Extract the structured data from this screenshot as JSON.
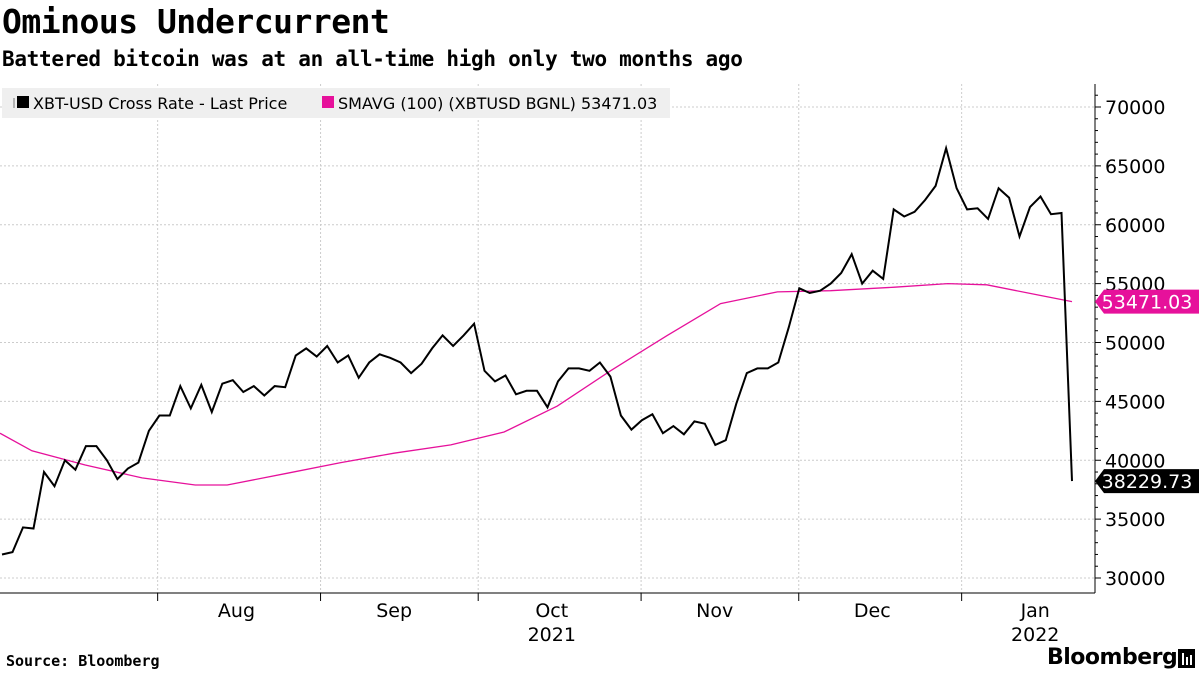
{
  "header": {
    "title": "Ominous Undercurrent",
    "subtitle": "Battered bitcoin was at an all-time high only two months ago"
  },
  "footer": {
    "source": "Source:  Bloomberg",
    "brand": "Bloomberg"
  },
  "colors": {
    "price_line": "#000000",
    "sma_line": "#e6119b",
    "grid": "#cccccc",
    "legend_bg": "#efefef"
  },
  "chart_data": {
    "type": "line",
    "x_unit": "date",
    "x_range": [
      "2021-07-02",
      "2022-01-22"
    ],
    "ylim": [
      28000,
      72000
    ],
    "y_ticks": [
      30000,
      35000,
      40000,
      45000,
      50000,
      55000,
      60000,
      65000,
      70000
    ],
    "y_tick_labels": [
      "30000",
      "35000",
      "40000",
      "45000",
      "50000",
      "55000",
      "60000",
      "65000",
      "70000"
    ],
    "x_month_ticks": [
      {
        "label": "Aug",
        "date": "2021-08-16"
      },
      {
        "label": "Sep",
        "date": "2021-09-15"
      },
      {
        "label": "Oct",
        "date": "2021-10-15"
      },
      {
        "label": "Nov",
        "date": "2021-11-15"
      },
      {
        "label": "Dec",
        "date": "2021-12-15"
      },
      {
        "label": "Jan",
        "date": "2022-01-15"
      }
    ],
    "x_year_labels": [
      {
        "label": "2021",
        "date": "2021-10-15"
      },
      {
        "label": "2022",
        "date": "2022-01-15"
      }
    ],
    "grid": true,
    "legend_position": "top-left",
    "series": [
      {
        "name": "XBT-USD Cross Rate - Last Price",
        "last_label": "38229.73",
        "points": [
          [
            "2021-07-03",
            32000
          ],
          [
            "2021-07-05",
            32200
          ],
          [
            "2021-07-07",
            34300
          ],
          [
            "2021-07-09",
            34200
          ],
          [
            "2021-07-11",
            39000
          ],
          [
            "2021-07-13",
            37800
          ],
          [
            "2021-07-15",
            40000
          ],
          [
            "2021-07-17",
            39200
          ],
          [
            "2021-07-19",
            41200
          ],
          [
            "2021-07-21",
            41200
          ],
          [
            "2021-07-23",
            40000
          ],
          [
            "2021-07-25",
            38400
          ],
          [
            "2021-07-27",
            39300
          ],
          [
            "2021-07-29",
            39800
          ],
          [
            "2021-07-31",
            42500
          ],
          [
            "2021-08-02",
            43800
          ],
          [
            "2021-08-04",
            43800
          ],
          [
            "2021-08-06",
            46300
          ],
          [
            "2021-08-08",
            44400
          ],
          [
            "2021-08-10",
            46400
          ],
          [
            "2021-08-12",
            44100
          ],
          [
            "2021-08-14",
            46500
          ],
          [
            "2021-08-16",
            46800
          ],
          [
            "2021-08-18",
            45800
          ],
          [
            "2021-08-20",
            46300
          ],
          [
            "2021-08-22",
            45500
          ],
          [
            "2021-08-24",
            46300
          ],
          [
            "2021-08-26",
            46200
          ],
          [
            "2021-08-28",
            48900
          ],
          [
            "2021-08-30",
            49500
          ],
          [
            "2021-09-01",
            48800
          ],
          [
            "2021-09-03",
            49700
          ],
          [
            "2021-09-05",
            48300
          ],
          [
            "2021-09-07",
            48900
          ],
          [
            "2021-09-09",
            47000
          ],
          [
            "2021-09-11",
            48300
          ],
          [
            "2021-09-13",
            49000
          ],
          [
            "2021-09-15",
            48700
          ],
          [
            "2021-09-17",
            48300
          ],
          [
            "2021-09-19",
            47400
          ],
          [
            "2021-09-21",
            48200
          ],
          [
            "2021-09-23",
            49500
          ],
          [
            "2021-09-25",
            50600
          ],
          [
            "2021-09-27",
            49700
          ],
          [
            "2021-09-29",
            50600
          ],
          [
            "2021-10-01",
            51600
          ],
          [
            "2021-10-03",
            47600
          ],
          [
            "2021-10-05",
            46700
          ],
          [
            "2021-10-07",
            47200
          ],
          [
            "2021-10-09",
            45600
          ],
          [
            "2021-10-11",
            45900
          ],
          [
            "2021-10-13",
            45900
          ],
          [
            "2021-10-15",
            44500
          ],
          [
            "2021-10-17",
            46700
          ],
          [
            "2021-10-19",
            47800
          ],
          [
            "2021-10-21",
            47800
          ],
          [
            "2021-10-23",
            47600
          ],
          [
            "2021-10-25",
            48300
          ],
          [
            "2021-10-27",
            47100
          ],
          [
            "2021-10-29",
            43800
          ],
          [
            "2021-10-31",
            42600
          ],
          [
            "2021-11-02",
            43400
          ],
          [
            "2021-11-04",
            43900
          ],
          [
            "2021-11-06",
            42300
          ],
          [
            "2021-11-08",
            42900
          ],
          [
            "2021-11-10",
            42200
          ],
          [
            "2021-11-12",
            43300
          ],
          [
            "2021-11-14",
            43100
          ],
          [
            "2021-11-16",
            41300
          ],
          [
            "2021-11-18",
            41700
          ],
          [
            "2021-11-20",
            44800
          ],
          [
            "2021-11-22",
            47400
          ],
          [
            "2021-11-24",
            47800
          ],
          [
            "2021-11-26",
            47800
          ],
          [
            "2021-11-28",
            48300
          ],
          [
            "2021-11-30",
            51300
          ],
          [
            "2021-12-02",
            54600
          ],
          [
            "2021-12-04",
            54200
          ],
          [
            "2021-12-06",
            54400
          ],
          [
            "2021-12-08",
            55000
          ],
          [
            "2021-12-10",
            55900
          ],
          [
            "2021-12-12",
            57500
          ],
          [
            "2021-12-14",
            55000
          ],
          [
            "2021-12-16",
            56100
          ],
          [
            "2021-12-18",
            55400
          ],
          [
            "2021-12-20",
            61300
          ],
          [
            "2021-12-22",
            60700
          ],
          [
            "2021-12-24",
            61100
          ],
          [
            "2021-12-26",
            62100
          ],
          [
            "2021-12-28",
            63300
          ],
          [
            "2021-12-30",
            66500
          ],
          [
            "2022-01-01",
            63100
          ],
          [
            "2022-01-03",
            61300
          ],
          [
            "2022-01-05",
            61400
          ],
          [
            "2022-01-07",
            60500
          ],
          [
            "2022-01-09",
            63100
          ],
          [
            "2022-01-11",
            62300
          ],
          [
            "2022-01-13",
            59000
          ],
          [
            "2022-01-15",
            61500
          ],
          [
            "2022-01-17",
            62400
          ],
          [
            "2022-01-19",
            60900
          ],
          [
            "2022-01-21",
            61000
          ],
          [
            "2022-01-22",
            38229.73
          ]
        ]
      },
      {
        "name": "SMAVG (100)  (XBTUSD BGNL) 53471.03",
        "last_label": "53471.03",
        "points": []
      }
    ]
  },
  "legend": {
    "items": [
      {
        "label": "XBT-USD Cross Rate - Last Price",
        "color": "#000000"
      },
      {
        "label": "SMAVG (100)  (XBTUSD BGNL) 53471.03",
        "color": "#e6119b"
      }
    ]
  }
}
